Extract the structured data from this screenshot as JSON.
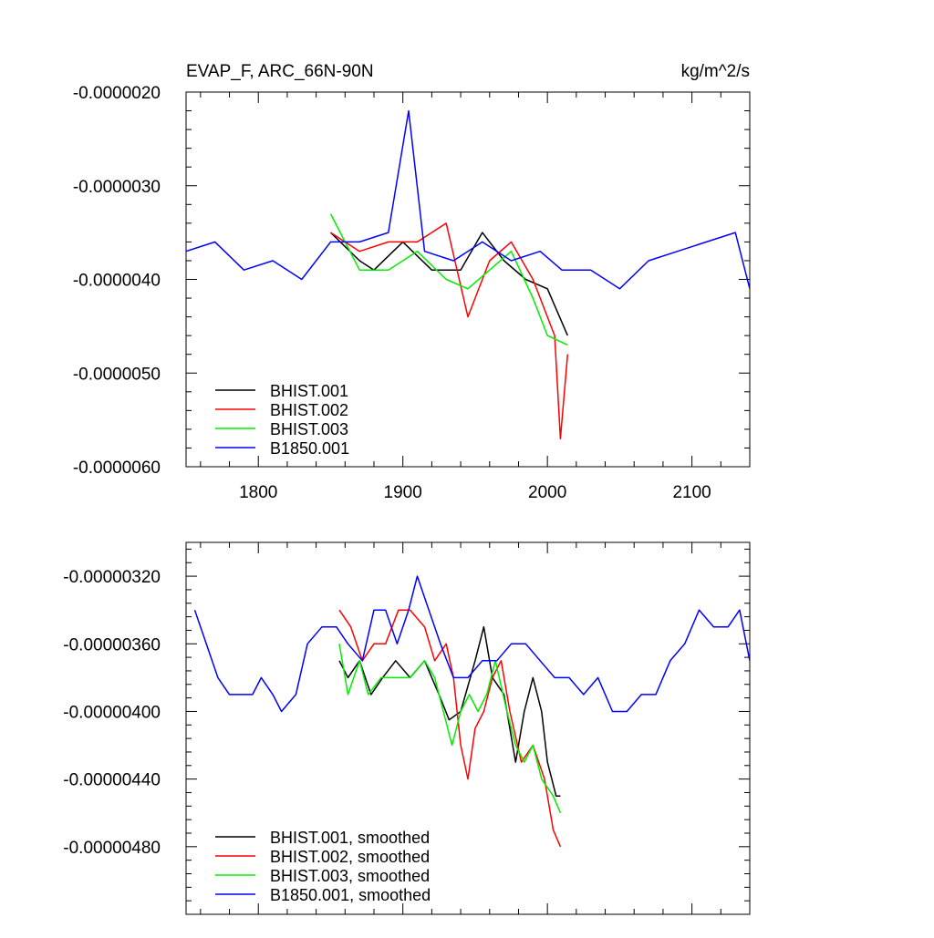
{
  "chart_data": [
    {
      "type": "line",
      "title": "EVAP_F, ARC_66N-90N",
      "units": "kg/m^2/s",
      "xlim": [
        1750,
        2140
      ],
      "ylim": [
        -6e-06,
        -2e-06
      ],
      "x_ticks": [
        1800,
        1900,
        2000,
        2100
      ],
      "x_tick_labels": [
        "1800",
        "1900",
        "2000",
        "2100"
      ],
      "y_ticks": [
        -2e-06,
        -3e-06,
        -4e-06,
        -5e-06,
        -6e-06
      ],
      "y_tick_labels": [
        "-0.0000020",
        "-0.0000030",
        "-0.0000040",
        "-0.0000050",
        "-0.0000060"
      ],
      "legend_position": "bottom-left",
      "series": [
        {
          "name": "BHIST.001",
          "color": "#000000",
          "start": 1850,
          "end": 2014,
          "points": [
            [
              1850,
              -3.5e-06
            ],
            [
              1870,
              -3.8e-06
            ],
            [
              1880,
              -3.9e-06
            ],
            [
              1900,
              -3.6e-06
            ],
            [
              1920,
              -3.9e-06
            ],
            [
              1940,
              -3.9e-06
            ],
            [
              1955,
              -3.5e-06
            ],
            [
              1970,
              -3.8e-06
            ],
            [
              1985,
              -4e-06
            ],
            [
              2000,
              -4.1e-06
            ],
            [
              2014,
              -4.6e-06
            ]
          ]
        },
        {
          "name": "BHIST.002",
          "color": "#ff0000",
          "start": 1850,
          "end": 2014,
          "points": [
            [
              1850,
              -3.5e-06
            ],
            [
              1870,
              -3.7e-06
            ],
            [
              1890,
              -3.6e-06
            ],
            [
              1910,
              -3.6e-06
            ],
            [
              1930,
              -3.4e-06
            ],
            [
              1945,
              -4.4e-06
            ],
            [
              1960,
              -3.8e-06
            ],
            [
              1975,
              -3.6e-06
            ],
            [
              1990,
              -4e-06
            ],
            [
              2005,
              -4.6e-06
            ],
            [
              2009,
              -5.7e-06
            ],
            [
              2014,
              -4.8e-06
            ]
          ]
        },
        {
          "name": "BHIST.003",
          "color": "#00ee00",
          "start": 1850,
          "end": 2014,
          "points": [
            [
              1850,
              -3.3e-06
            ],
            [
              1870,
              -3.9e-06
            ],
            [
              1890,
              -3.9e-06
            ],
            [
              1910,
              -3.7e-06
            ],
            [
              1930,
              -4e-06
            ],
            [
              1945,
              -4.1e-06
            ],
            [
              1960,
              -3.9e-06
            ],
            [
              1975,
              -3.7e-06
            ],
            [
              1990,
              -4.2e-06
            ],
            [
              2000,
              -4.6e-06
            ],
            [
              2014,
              -4.7e-06
            ]
          ]
        },
        {
          "name": "B1850.001",
          "color": "#0000ff",
          "start": 1750,
          "end": 2140,
          "points": [
            [
              1750,
              -3.7e-06
            ],
            [
              1770,
              -3.6e-06
            ],
            [
              1790,
              -3.9e-06
            ],
            [
              1810,
              -3.8e-06
            ],
            [
              1830,
              -4e-06
            ],
            [
              1850,
              -3.6e-06
            ],
            [
              1870,
              -3.6e-06
            ],
            [
              1890,
              -3.5e-06
            ],
            [
              1904,
              -2.2e-06
            ],
            [
              1915,
              -3.7e-06
            ],
            [
              1935,
              -3.8e-06
            ],
            [
              1955,
              -3.6e-06
            ],
            [
              1975,
              -3.8e-06
            ],
            [
              1995,
              -3.7e-06
            ],
            [
              2010,
              -3.9e-06
            ],
            [
              2030,
              -3.9e-06
            ],
            [
              2050,
              -4.1e-06
            ],
            [
              2070,
              -3.8e-06
            ],
            [
              2090,
              -3.7e-06
            ],
            [
              2110,
              -3.6e-06
            ],
            [
              2130,
              -3.5e-06
            ],
            [
              2140,
              -4.1e-06
            ]
          ]
        }
      ],
      "legend": [
        "BHIST.001",
        "BHIST.002",
        "BHIST.003",
        "B1850.001"
      ]
    },
    {
      "type": "line",
      "title": "",
      "xlim": [
        1750,
        2140
      ],
      "ylim": [
        -5.2e-06,
        -3e-06
      ],
      "x_ticks": [
        1800,
        1900,
        2000,
        2100
      ],
      "y_ticks": [
        -3.2e-06,
        -3.6e-06,
        -4e-06,
        -4.4e-06,
        -4.8e-06
      ],
      "y_tick_labels": [
        "-0.00000320",
        "-0.00000360",
        "-0.00000400",
        "-0.00000440",
        "-0.00000480"
      ],
      "legend_position": "bottom-left",
      "series": [
        {
          "name": "BHIST.001, smoothed",
          "color": "#000000",
          "points": [
            [
              1856,
              -3.7e-06
            ],
            [
              1862,
              -3.8e-06
            ],
            [
              1870,
              -3.7e-06
            ],
            [
              1878,
              -3.9e-06
            ],
            [
              1886,
              -3.8e-06
            ],
            [
              1895,
              -3.7e-06
            ],
            [
              1905,
              -3.8e-06
            ],
            [
              1915,
              -3.7e-06
            ],
            [
              1925,
              -3.9e-06
            ],
            [
              1932,
              -4.05e-06
            ],
            [
              1940,
              -4e-06
            ],
            [
              1950,
              -3.7e-06
            ],
            [
              1956,
              -3.5e-06
            ],
            [
              1962,
              -3.8e-06
            ],
            [
              1970,
              -3.9e-06
            ],
            [
              1978,
              -4.3e-06
            ],
            [
              1984,
              -4e-06
            ],
            [
              1990,
              -3.8e-06
            ],
            [
              1996,
              -4e-06
            ],
            [
              2000,
              -4.3e-06
            ],
            [
              2006,
              -4.5e-06
            ],
            [
              2009,
              -4.5e-06
            ]
          ]
        },
        {
          "name": "BHIST.002, smoothed",
          "color": "#ff0000",
          "points": [
            [
              1856,
              -3.4e-06
            ],
            [
              1864,
              -3.5e-06
            ],
            [
              1872,
              -3.7e-06
            ],
            [
              1880,
              -3.6e-06
            ],
            [
              1888,
              -3.6e-06
            ],
            [
              1897,
              -3.4e-06
            ],
            [
              1905,
              -3.4e-06
            ],
            [
              1915,
              -3.5e-06
            ],
            [
              1922,
              -3.7e-06
            ],
            [
              1930,
              -3.6e-06
            ],
            [
              1935,
              -3.8e-06
            ],
            [
              1940,
              -4.2e-06
            ],
            [
              1945,
              -4.4e-06
            ],
            [
              1950,
              -4.1e-06
            ],
            [
              1956,
              -4e-06
            ],
            [
              1962,
              -3.8e-06
            ],
            [
              1968,
              -3.7e-06
            ],
            [
              1974,
              -4e-06
            ],
            [
              1982,
              -4.3e-06
            ],
            [
              1990,
              -4.2e-06
            ],
            [
              1998,
              -4.4e-06
            ],
            [
              2004,
              -4.7e-06
            ],
            [
              2009,
              -4.8e-06
            ]
          ]
        },
        {
          "name": "BHIST.003, smoothed",
          "color": "#00ee00",
          "points": [
            [
              1856,
              -3.6e-06
            ],
            [
              1862,
              -3.9e-06
            ],
            [
              1870,
              -3.7e-06
            ],
            [
              1876,
              -3.9e-06
            ],
            [
              1885,
              -3.8e-06
            ],
            [
              1895,
              -3.8e-06
            ],
            [
              1905,
              -3.8e-06
            ],
            [
              1915,
              -3.7e-06
            ],
            [
              1922,
              -3.8e-06
            ],
            [
              1928,
              -4e-06
            ],
            [
              1934,
              -4.2e-06
            ],
            [
              1940,
              -4e-06
            ],
            [
              1946,
              -3.9e-06
            ],
            [
              1952,
              -4e-06
            ],
            [
              1958,
              -3.9e-06
            ],
            [
              1964,
              -3.7e-06
            ],
            [
              1972,
              -4e-06
            ],
            [
              1978,
              -4.2e-06
            ],
            [
              1984,
              -4.3e-06
            ],
            [
              1990,
              -4.2e-06
            ],
            [
              1996,
              -4.4e-06
            ],
            [
              2004,
              -4.5e-06
            ],
            [
              2009,
              -4.6e-06
            ]
          ]
        },
        {
          "name": "B1850.001, smoothed",
          "color": "#0000ff",
          "points": [
            [
              1756,
              -3.4e-06
            ],
            [
              1764,
              -3.6e-06
            ],
            [
              1772,
              -3.8e-06
            ],
            [
              1780,
              -3.9e-06
            ],
            [
              1788,
              -3.9e-06
            ],
            [
              1796,
              -3.9e-06
            ],
            [
              1802,
              -3.8e-06
            ],
            [
              1810,
              -3.9e-06
            ],
            [
              1816,
              -4e-06
            ],
            [
              1826,
              -3.9e-06
            ],
            [
              1834,
              -3.6e-06
            ],
            [
              1844,
              -3.5e-06
            ],
            [
              1854,
              -3.5e-06
            ],
            [
              1862,
              -3.6e-06
            ],
            [
              1872,
              -3.7e-06
            ],
            [
              1880,
              -3.4e-06
            ],
            [
              1888,
              -3.4e-06
            ],
            [
              1896,
              -3.6e-06
            ],
            [
              1904,
              -3.4e-06
            ],
            [
              1910,
              -3.2e-06
            ],
            [
              1918,
              -3.4e-06
            ],
            [
              1926,
              -3.6e-06
            ],
            [
              1935,
              -3.8e-06
            ],
            [
              1945,
              -3.8e-06
            ],
            [
              1955,
              -3.7e-06
            ],
            [
              1965,
              -3.7e-06
            ],
            [
              1975,
              -3.6e-06
            ],
            [
              1985,
              -3.6e-06
            ],
            [
              1995,
              -3.7e-06
            ],
            [
              2005,
              -3.8e-06
            ],
            [
              2015,
              -3.8e-06
            ],
            [
              2025,
              -3.9e-06
            ],
            [
              2035,
              -3.8e-06
            ],
            [
              2045,
              -4e-06
            ],
            [
              2055,
              -4e-06
            ],
            [
              2065,
              -3.9e-06
            ],
            [
              2075,
              -3.9e-06
            ],
            [
              2085,
              -3.7e-06
            ],
            [
              2095,
              -3.6e-06
            ],
            [
              2105,
              -3.4e-06
            ],
            [
              2115,
              -3.5e-06
            ],
            [
              2125,
              -3.5e-06
            ],
            [
              2133,
              -3.4e-06
            ],
            [
              2140,
              -3.7e-06
            ]
          ]
        }
      ],
      "legend": [
        "BHIST.001, smoothed",
        "BHIST.002, smoothed",
        "BHIST.003, smoothed",
        "B1850.001, smoothed"
      ]
    }
  ]
}
